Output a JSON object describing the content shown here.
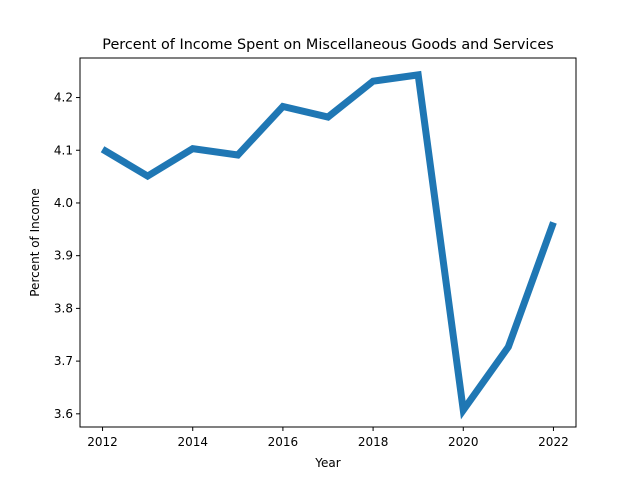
{
  "chart_data": {
    "type": "line",
    "title": "Percent of Income Spent on Miscellaneous Goods and Services",
    "xlabel": "Year",
    "ylabel": "Percent of Income",
    "x": [
      2012,
      2013,
      2014,
      2015,
      2016,
      2017,
      2018,
      2019,
      2020,
      2021,
      2022
    ],
    "series": [
      {
        "values": [
          4.102,
          4.051,
          4.103,
          4.091,
          4.183,
          4.163,
          4.231,
          4.243,
          3.607,
          3.727,
          3.963
        ],
        "color": "#1f77b4"
      }
    ],
    "xlim": [
      2011.5,
      2022.5
    ],
    "ylim": [
      3.575,
      4.275
    ],
    "xticks": [
      "2012",
      "2014",
      "2016",
      "2018",
      "2020",
      "2022"
    ],
    "yticks": [
      "3.6",
      "3.7",
      "3.8",
      "3.9",
      "4.0",
      "4.1",
      "4.2"
    ],
    "grid": false,
    "legend": "none"
  }
}
